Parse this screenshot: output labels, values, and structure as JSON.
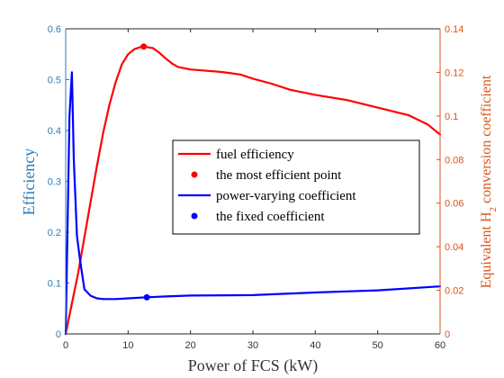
{
  "chart_data": {
    "type": "line",
    "title": "",
    "xlabel": "Power of FCS (kW)",
    "ylabel_left": "Efficiency",
    "ylabel_right": "Equivalent H2 conversion coefficient",
    "ylabel_right_parts": {
      "pre": "Equivalent H",
      "sub": "2",
      "post": " conversion coefficient"
    },
    "xlim": [
      0,
      60
    ],
    "ylim_left": [
      0,
      0.6
    ],
    "ylim_right": [
      0,
      0.14
    ],
    "xticks": [
      "0",
      "10",
      "20",
      "30",
      "40",
      "50",
      "60"
    ],
    "yticks_left": [
      "0",
      "0.1",
      "0.2",
      "0.3",
      "0.4",
      "0.5",
      "0.6"
    ],
    "yticks_right": [
      "0",
      "0.02",
      "0.04",
      "0.06",
      "0.08",
      "0.1",
      "0.12",
      "0.14"
    ],
    "grid": false,
    "legend_position": "center-right",
    "series": [
      {
        "name": "fuel efficiency",
        "axis": "left",
        "color": "#ff0000",
        "x": [
          0,
          1,
          2,
          3,
          4,
          5,
          6,
          7,
          8,
          9,
          10,
          11,
          12,
          12.5,
          13,
          14,
          15,
          16,
          17,
          18,
          20,
          22,
          25,
          28,
          30,
          33,
          36,
          40,
          45,
          50,
          55,
          58,
          60
        ],
        "y": [
          0,
          0.06,
          0.12,
          0.19,
          0.26,
          0.33,
          0.395,
          0.45,
          0.495,
          0.53,
          0.55,
          0.56,
          0.564,
          0.565,
          0.564,
          0.562,
          0.553,
          0.542,
          0.532,
          0.525,
          0.52,
          0.518,
          0.515,
          0.51,
          0.502,
          0.492,
          0.48,
          0.47,
          0.46,
          0.445,
          0.43,
          0.412,
          0.392
        ]
      },
      {
        "name": "power-varying coefficient",
        "axis": "right",
        "color": "#0000ff",
        "x": [
          0,
          0.3,
          0.6,
          1.0,
          1.3,
          1.8,
          2.3,
          3,
          4,
          5,
          6,
          8,
          10,
          13,
          16,
          20,
          30,
          40,
          50,
          60
        ],
        "y": [
          0,
          0.05,
          0.1,
          0.12,
          0.08,
          0.045,
          0.034,
          0.0205,
          0.0175,
          0.0163,
          0.016,
          0.016,
          0.0163,
          0.0168,
          0.0172,
          0.0176,
          0.0178,
          0.019,
          0.02,
          0.0218
        ]
      }
    ],
    "markers": [
      {
        "name": "the most efficient point",
        "axis": "left",
        "color": "#ff0000",
        "x": 12.5,
        "y": 0.565
      },
      {
        "name": "the fixed coefficient",
        "axis": "right",
        "color": "#0000ff",
        "x": 13,
        "y": 0.0168
      }
    ],
    "legend": [
      {
        "label": "fuel efficiency",
        "kind": "line",
        "color": "#ff0000"
      },
      {
        "label": "the most efficient point",
        "kind": "marker",
        "color": "#ff0000"
      },
      {
        "label": "power-varying coefficient",
        "kind": "line",
        "color": "#0000ff"
      },
      {
        "label": "the fixed coefficient",
        "kind": "marker",
        "color": "#0000ff"
      }
    ],
    "colors": {
      "left_axis": "#2b7bb9",
      "right_axis": "#d95319"
    }
  }
}
